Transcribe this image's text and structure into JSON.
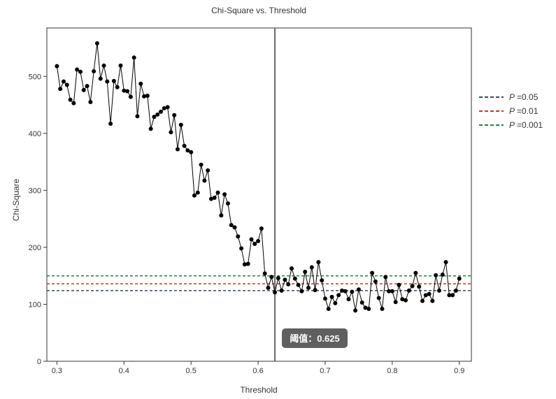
{
  "chart_data": {
    "type": "line",
    "title": "Chi-Square vs. Threshold",
    "xlabel": "Threshold",
    "ylabel": "Chi-Square",
    "xlim": [
      0.285,
      0.918
    ],
    "ylim": [
      0,
      585
    ],
    "xticks": [
      0.3,
      0.4,
      0.5,
      0.6,
      0.7,
      0.8,
      0.9
    ],
    "xtick_labels": [
      "0.3",
      "0.4",
      "0.5",
      "0.6",
      "0.7",
      "0.8",
      "0.9"
    ],
    "yticks": [
      0,
      100,
      200,
      300,
      400,
      500
    ],
    "ytick_labels": [
      "0",
      "100",
      "200",
      "300",
      "400",
      "500"
    ],
    "grid": false,
    "legend_position": "right",
    "series": [
      {
        "color": "#000000",
        "marker": "circle",
        "x": [
          0.3,
          0.305,
          0.31,
          0.315,
          0.32,
          0.325,
          0.33,
          0.335,
          0.34,
          0.345,
          0.35,
          0.355,
          0.36,
          0.365,
          0.37,
          0.375,
          0.38,
          0.385,
          0.39,
          0.395,
          0.4,
          0.405,
          0.41,
          0.415,
          0.42,
          0.425,
          0.43,
          0.435,
          0.44,
          0.445,
          0.45,
          0.455,
          0.46,
          0.465,
          0.47,
          0.475,
          0.48,
          0.485,
          0.49,
          0.495,
          0.5,
          0.505,
          0.51,
          0.515,
          0.52,
          0.525,
          0.53,
          0.535,
          0.54,
          0.545,
          0.55,
          0.555,
          0.56,
          0.565,
          0.57,
          0.575,
          0.58,
          0.585,
          0.59,
          0.595,
          0.6,
          0.605,
          0.61,
          0.615,
          0.62,
          0.625,
          0.63,
          0.635,
          0.64,
          0.645,
          0.65,
          0.655,
          0.66,
          0.665,
          0.67,
          0.675,
          0.68,
          0.685,
          0.69,
          0.695,
          0.7,
          0.705,
          0.71,
          0.715,
          0.72,
          0.725,
          0.73,
          0.735,
          0.74,
          0.745,
          0.75,
          0.755,
          0.76,
          0.765,
          0.77,
          0.775,
          0.78,
          0.785,
          0.79,
          0.795,
          0.8,
          0.805,
          0.81,
          0.815,
          0.82,
          0.825,
          0.83,
          0.835,
          0.84,
          0.845,
          0.85,
          0.855,
          0.86,
          0.865,
          0.87,
          0.875,
          0.88,
          0.885,
          0.89,
          0.895,
          0.9
        ],
        "values": [
          518,
          478,
          491,
          485,
          459,
          453,
          512,
          508,
          476,
          483,
          455,
          509,
          558,
          496,
          519,
          491,
          417,
          492,
          481,
          519,
          475,
          474,
          464,
          533,
          430,
          487,
          465,
          466,
          408,
          429,
          433,
          438,
          444,
          446,
          402,
          432,
          372,
          415,
          378,
          370,
          367,
          291,
          296,
          345,
          317,
          335,
          285,
          287,
          296,
          256,
          293,
          277,
          239,
          235,
          219,
          198,
          170,
          171,
          214,
          206,
          211,
          233,
          154,
          129,
          148,
          121,
          146,
          124,
          143,
          135,
          163,
          145,
          134,
          123,
          157,
          129,
          165,
          125,
          174,
          142,
          110,
          92,
          113,
          102,
          116,
          124,
          123,
          109,
          122,
          89,
          126,
          103,
          94,
          92,
          155,
          140,
          111,
          92,
          148,
          123,
          123,
          104,
          134,
          109,
          107,
          124,
          132,
          155,
          131,
          106,
          116,
          118,
          106,
          151,
          124,
          152,
          174,
          116,
          116,
          124,
          145
        ]
      }
    ],
    "reference_lines": [
      {
        "p_label": "P",
        "value_label": "=0.05",
        "y": 124,
        "color": "#34495e"
      },
      {
        "p_label": "P",
        "value_label": "=0.01",
        "y": 136,
        "color": "#c0392b"
      },
      {
        "p_label": "P",
        "value_label": "=0.001",
        "y": 150,
        "color": "#1e8449"
      }
    ],
    "threshold_marker": {
      "x": 0.625,
      "label": "阈值：0.625",
      "color": "#666666"
    }
  }
}
